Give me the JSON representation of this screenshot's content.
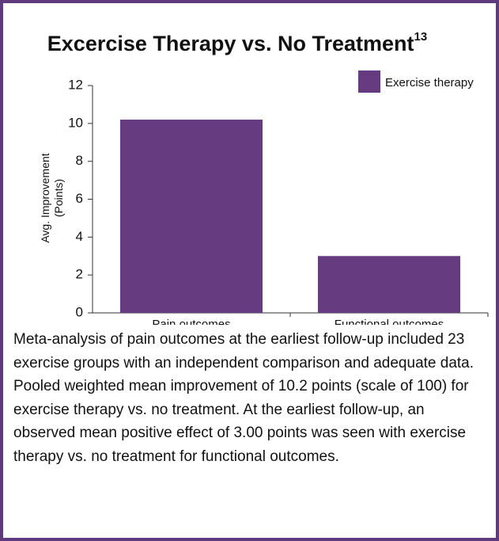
{
  "chart_data": {
    "type": "bar",
    "title": "Excercise Therapy vs. No Treatment",
    "title_footnote": "13",
    "ylabel": [
      "Avg. Improvement",
      "(Points)"
    ],
    "categories": [
      "Pain outcomes",
      "Functional outcomes"
    ],
    "series": [
      {
        "name": "Exercise therapy",
        "color": "#663b80",
        "values": [
          10.2,
          3.0
        ]
      }
    ],
    "ylim": [
      0,
      12
    ],
    "yticks": [
      0,
      2,
      4,
      6,
      8,
      10,
      12
    ],
    "legend": "upper right",
    "grid": false
  },
  "caption": "Meta-analysis of pain outcomes at the earliest follow-up included 23 exercise groups with an independent comparison and adequate data. Pooled weighted mean improvement of 10.2 points (scale of 100) for exercise therapy vs. no treatment. At the earliest follow-up, an observed mean positive effect of 3.00 points was seen with exercise therapy vs. no treatment for functional outcomes."
}
